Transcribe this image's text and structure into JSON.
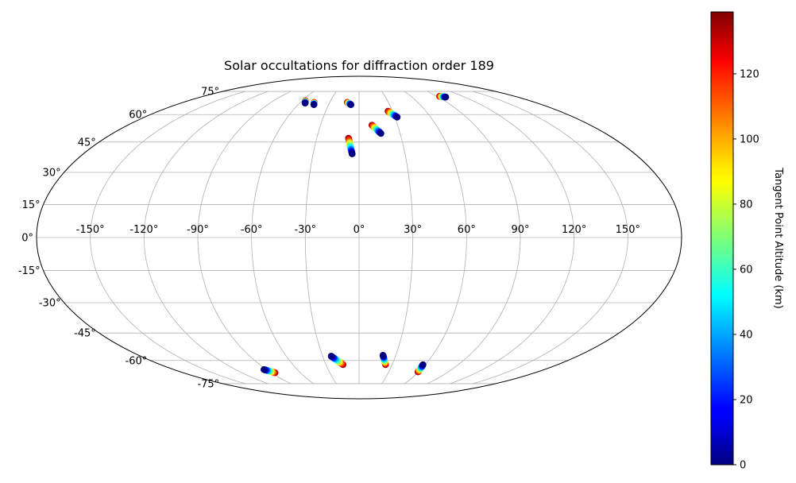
{
  "chart_data": {
    "type": "scatter",
    "projection": "mollweide",
    "title": "Solar occultations for diffraction order 189",
    "grid": true,
    "xlim": [
      -180,
      180
    ],
    "ylim": [
      -90,
      90
    ],
    "lon_ticks": [
      -150,
      -120,
      -90,
      -60,
      -30,
      0,
      30,
      60,
      90,
      120,
      150
    ],
    "lon_tick_labels": [
      "-150°",
      "-120°",
      "-90°",
      "-60°",
      "-30°",
      "0°",
      "30°",
      "60°",
      "90°",
      "120°",
      "150°"
    ],
    "lat_ticks": [
      75,
      60,
      45,
      30,
      15,
      0,
      -15,
      -30,
      -45,
      -60,
      -75
    ],
    "lat_tick_labels": [
      "75°",
      "60°",
      "45°",
      "30°",
      "15°",
      "0°",
      "-15°",
      "-30°",
      "-45°",
      "-60°",
      "-75°"
    ],
    "colorbar": {
      "label": "Tangent Point Altitude (km)",
      "colormap": "jet",
      "vmin": 0,
      "vmax": 139,
      "ticks": [
        0,
        20,
        40,
        60,
        80,
        100,
        120
      ],
      "tick_labels": [
        "0",
        "20",
        "40",
        "60",
        "80",
        "100",
        "120"
      ]
    },
    "occultations": [
      {
        "lon_start": -56.5,
        "lat_start": 68.5,
        "lon_end": -54.5,
        "lat_end": 67.0,
        "alt_start": 139,
        "alt_end": 0
      },
      {
        "lon_start": -46.0,
        "lat_start": 67.5,
        "lon_end": -44.5,
        "lat_end": 66.0,
        "alt_start": 139,
        "alt_end": 0
      },
      {
        "lon_start": -12.0,
        "lat_start": 67.5,
        "lon_end": -8.0,
        "lat_end": 66.0,
        "alt_start": 139,
        "alt_end": 0
      },
      {
        "lon_start": 10.0,
        "lat_start": 54.0,
        "lon_end": 16.0,
        "lat_end": 49.5,
        "alt_start": 139,
        "alt_end": 0
      },
      {
        "lon_start": 26.0,
        "lat_start": 62.0,
        "lon_end": 32.0,
        "lat_end": 58.5,
        "alt_start": 139,
        "alt_end": 0
      },
      {
        "lon_start": 93.0,
        "lat_start": 71.5,
        "lon_end": 98.5,
        "lat_end": 71.0,
        "alt_start": 139,
        "alt_end": 0
      },
      {
        "lon_start": -7.5,
        "lat_start": 47.0,
        "lon_end": -4.5,
        "lat_end": 39.0,
        "alt_start": 139,
        "alt_end": 0
      },
      {
        "lon_start": -86.0,
        "lat_start": -67.5,
        "lon_end": -92.5,
        "lat_end": -65.5,
        "alt_start": 139,
        "alt_end": 0
      },
      {
        "lon_start": -14.5,
        "lat_start": -62.5,
        "lon_end": -23.0,
        "lat_end": -57.5,
        "alt_start": 139,
        "alt_end": 0
      },
      {
        "lon_start": 24.0,
        "lat_start": -62.5,
        "lon_end": 19.5,
        "lat_end": -57.0,
        "alt_start": 139,
        "alt_end": 0
      },
      {
        "lon_start": 59.5,
        "lat_start": -67.0,
        "lon_end": 58.0,
        "lat_end": -62.5,
        "alt_start": 139,
        "alt_end": 0
      }
    ]
  }
}
